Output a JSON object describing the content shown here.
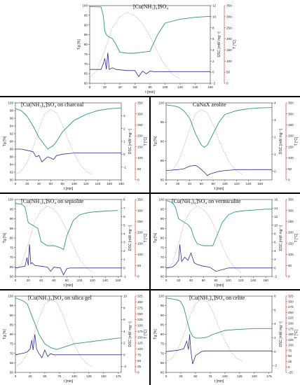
{
  "chart_data": [
    {
      "type": "line",
      "title": "[Cu(NH₃)₄]SO₄",
      "xlabel": "t [min]",
      "ylabel_left": "Tg [%]",
      "ylabel_dsc": "DSC [mW mg⁻¹]",
      "ylabel_temp": "T [°C]",
      "xlim": [
        0,
        160
      ],
      "xticks": [
        0,
        20,
        40,
        60,
        80,
        100,
        120,
        140,
        160
      ],
      "tg_lim": [
        60,
        100
      ],
      "tg_ticks": [
        60,
        65,
        70,
        75,
        80,
        85,
        90,
        95,
        100
      ],
      "dsc_lim": [
        -2,
        12
      ],
      "dsc_ticks": [
        -2,
        0,
        2,
        4,
        6,
        8,
        10,
        12
      ],
      "temp_lim": [
        0,
        350
      ],
      "temp_ticks": [
        0,
        50,
        100,
        150,
        200,
        250,
        300,
        350
      ],
      "tg": {
        "x": [
          0,
          15,
          18,
          20,
          22,
          25,
          30,
          35,
          40,
          50,
          60,
          70,
          80,
          90,
          100,
          120,
          140,
          160
        ],
        "y": [
          99.5,
          99.3,
          95,
          87,
          85,
          84,
          83,
          80,
          76,
          75.5,
          75.5,
          76,
          76.5,
          85,
          91,
          93,
          94,
          94.5
        ]
      },
      "dsc": {
        "x": [
          0,
          15,
          18,
          20,
          22,
          24,
          26,
          30,
          35,
          50,
          60,
          65,
          70,
          75,
          80,
          85,
          100,
          120,
          160
        ],
        "y": [
          0.5,
          0.5,
          1.5,
          2.5,
          0.5,
          3.5,
          0.5,
          0.8,
          0.5,
          0.3,
          0.3,
          -0.8,
          0.2,
          -0.3,
          0.2,
          0.1,
          0.1,
          0.1,
          0.1
        ]
      },
      "temp": {
        "x": [
          0,
          10,
          20,
          30,
          40,
          50,
          60,
          70,
          80,
          90,
          100,
          110,
          120
        ],
        "y": [
          25,
          60,
          150,
          250,
          300,
          320,
          305,
          270,
          210,
          140,
          80,
          40,
          20
        ]
      }
    },
    {
      "type": "line",
      "title": "[Cu(NH₃)₄]SO₄ on charcoal",
      "xlabel": "t [min]",
      "ylabel_left": "Tg [%]",
      "ylabel_dsc": "DSC [mW mg⁻¹]",
      "ylabel_temp": "T [°C]",
      "xlim": [
        0,
        180
      ],
      "xticks": [
        0,
        20,
        40,
        60,
        80,
        100,
        120,
        140,
        160,
        180
      ],
      "tg_lim": [
        80,
        100
      ],
      "tg_ticks": [
        80,
        82,
        84,
        86,
        88,
        90,
        92,
        94,
        96,
        98,
        100
      ],
      "dsc_lim": [
        -2,
        4
      ],
      "dsc_ticks": [
        -1,
        0,
        1,
        2,
        3
      ],
      "temp_lim": [
        0,
        350
      ],
      "temp_ticks": [
        0,
        50,
        100,
        150,
        200,
        250,
        300,
        350
      ],
      "tg": {
        "x": [
          0,
          10,
          20,
          30,
          40,
          50,
          55,
          60,
          65,
          70,
          80,
          100,
          120,
          140,
          160,
          180
        ],
        "y": [
          98.5,
          98,
          96.5,
          94,
          91,
          89,
          88,
          88.5,
          89,
          90,
          92.5,
          95.5,
          97,
          98,
          98.5,
          98.7
        ]
      },
      "dsc": {
        "x": [
          0,
          10,
          20,
          30,
          35,
          40,
          45,
          50,
          55,
          60,
          65,
          70,
          80,
          100,
          120,
          180
        ],
        "y": [
          0.4,
          0.4,
          0.3,
          0.2,
          -0.2,
          -0.1,
          -0.6,
          -0.4,
          -0.2,
          -0.3,
          -0.4,
          -0.1,
          0,
          0.1,
          0.1,
          0.1
        ]
      },
      "temp": {
        "x": [
          0,
          10,
          20,
          30,
          40,
          50,
          60,
          70,
          80,
          90,
          100,
          110,
          120,
          130
        ],
        "y": [
          25,
          40,
          80,
          150,
          230,
          300,
          320,
          305,
          250,
          180,
          120,
          70,
          40,
          25
        ]
      }
    },
    {
      "type": "line",
      "title": "CuNaX zeolite",
      "xlabel": "t [min]",
      "ylabel_left": "Tg [%]",
      "ylabel_dsc": "DSC [mW mg⁻¹]",
      "ylabel_temp": "T [°C]",
      "xlim": [
        0,
        180
      ],
      "xticks": [
        0,
        20,
        40,
        60,
        80,
        100,
        120,
        140,
        160
      ],
      "tg_lim": [
        80,
        100
      ],
      "tg_ticks": [
        80,
        85,
        90,
        95,
        100
      ],
      "dsc_lim": [
        -0.5,
        4
      ],
      "dsc_ticks": [
        0,
        1,
        2,
        3,
        4
      ],
      "temp_lim": [
        0,
        350
      ],
      "temp_ticks": [
        0,
        50,
        100,
        150,
        200,
        250,
        300,
        350
      ],
      "tg": {
        "x": [
          0,
          10,
          20,
          30,
          40,
          50,
          60,
          65,
          70,
          80,
          90,
          100,
          120,
          140,
          160,
          180
        ],
        "y": [
          99.5,
          99.3,
          99,
          98,
          96,
          92,
          89,
          88.5,
          89,
          92,
          95,
          97,
          98,
          98.5,
          98.7,
          98.8
        ]
      },
      "dsc": {
        "x": [
          0,
          20,
          30,
          40,
          50,
          55,
          60,
          65,
          70,
          75,
          80,
          90,
          100,
          120,
          180
        ],
        "y": [
          0.05,
          0.1,
          0.15,
          0.3,
          0.35,
          0.25,
          0.1,
          -0.05,
          -0.25,
          -0.15,
          -0.1,
          0,
          0.05,
          0.1,
          0.1
        ]
      },
      "temp": {
        "x": [
          0,
          10,
          20,
          30,
          40,
          50,
          60,
          70,
          80,
          90,
          100,
          110,
          120,
          130
        ],
        "y": [
          25,
          40,
          80,
          150,
          230,
          300,
          320,
          305,
          250,
          180,
          120,
          70,
          40,
          25
        ]
      }
    },
    {
      "type": "line",
      "title": "[Cu(NH₃)₄]SO₄ on sepiolite",
      "xlabel": "t [min]",
      "ylabel_left": "Tg [%]",
      "ylabel_dsc": "DSC [mW mg⁻¹]",
      "ylabel_temp": "T [°C]",
      "xlim": [
        0,
        165
      ],
      "xticks": [
        0,
        20,
        40,
        60,
        80,
        100,
        120,
        140,
        160
      ],
      "tg_lim": [
        60,
        100
      ],
      "tg_ticks": [
        60,
        65,
        70,
        75,
        80,
        85,
        90,
        95,
        100
      ],
      "dsc_lim": [
        -1,
        8
      ],
      "dsc_ticks": [
        -1,
        0,
        1,
        2,
        3,
        4,
        5,
        6,
        7,
        8
      ],
      "temp_lim": [
        0,
        350
      ],
      "temp_ticks": [
        0,
        50,
        100,
        150,
        200,
        250,
        300,
        350
      ],
      "tg": {
        "x": [
          0,
          10,
          15,
          20,
          25,
          30,
          35,
          40,
          50,
          60,
          70,
          75,
          80,
          90,
          100,
          110,
          120,
          140,
          160
        ],
        "y": [
          98,
          97.5,
          96,
          88,
          87,
          86,
          85,
          78,
          76,
          76,
          75,
          74,
          81,
          89,
          92,
          93,
          93.5,
          94,
          94.3
        ]
      },
      "dsc": {
        "x": [
          0,
          15,
          18,
          20,
          22,
          24,
          26,
          30,
          40,
          50,
          55,
          60,
          70,
          75,
          80,
          85,
          100,
          165
        ],
        "y": [
          0,
          0.2,
          1.2,
          0.3,
          2.8,
          0.5,
          0.6,
          0.3,
          0.2,
          0.1,
          -0.4,
          0.1,
          0,
          -0.8,
          -0.1,
          0,
          0,
          0
        ]
      },
      "temp": {
        "x": [
          0,
          10,
          20,
          30,
          40,
          50,
          60,
          70,
          80,
          90,
          100,
          110,
          120
        ],
        "y": [
          25,
          60,
          150,
          250,
          300,
          320,
          305,
          270,
          210,
          140,
          80,
          40,
          20
        ]
      }
    },
    {
      "type": "line",
      "title": "[Cu(NH₃)₄]SO₄ on vermiculite",
      "xlabel": "t [min]",
      "ylabel_left": "Tg [%]",
      "ylabel_dsc": "DSC [mW mg⁻¹]",
      "ylabel_temp": "T [°C]",
      "xlim": [
        0,
        170
      ],
      "xticks": [
        0,
        20,
        40,
        60,
        80,
        100,
        120,
        140,
        160
      ],
      "tg_lim": [
        60,
        100
      ],
      "tg_ticks": [
        60,
        65,
        70,
        75,
        80,
        85,
        90,
        95,
        100
      ],
      "dsc_lim": [
        -2,
        16
      ],
      "dsc_ticks": [
        -2,
        0,
        2,
        4,
        6,
        8,
        10,
        12,
        14,
        16
      ],
      "temp_lim": [
        0,
        350
      ],
      "temp_ticks": [
        0,
        50,
        100,
        150,
        200,
        250,
        300,
        350
      ],
      "tg": {
        "x": [
          0,
          10,
          15,
          20,
          30,
          35,
          40,
          45,
          50,
          60,
          70,
          75,
          80,
          90,
          100,
          110,
          120,
          140,
          160,
          170
        ],
        "y": [
          99.5,
          98.5,
          96,
          90,
          88,
          87,
          85,
          80,
          77,
          76,
          76,
          76,
          80,
          88,
          92,
          93.5,
          94,
          94.5,
          95,
          95
        ]
      },
      "dsc": {
        "x": [
          0,
          10,
          15,
          20,
          22,
          25,
          30,
          35,
          40,
          45,
          50,
          60,
          70,
          80,
          100,
          120,
          170
        ],
        "y": [
          0,
          0.2,
          0.8,
          1.8,
          5.5,
          1.5,
          2.5,
          1.8,
          3.5,
          1.2,
          0.8,
          0.4,
          0.2,
          -0.8,
          0,
          0,
          0
        ]
      },
      "temp": {
        "x": [
          0,
          10,
          20,
          30,
          40,
          50,
          60,
          70,
          80,
          90,
          100,
          110,
          120
        ],
        "y": [
          25,
          60,
          150,
          250,
          300,
          320,
          305,
          270,
          210,
          140,
          80,
          40,
          20
        ]
      }
    },
    {
      "type": "line",
      "title": "[Cu(NH₃)₄]SO₄ on silica gel",
      "xlabel": "t [min]",
      "ylabel_left": "Tg [%]",
      "ylabel_dsc": "DSC [mW mg⁻¹]",
      "ylabel_temp": "T [°C]",
      "xlim": [
        0,
        180
      ],
      "xticks": [
        0,
        25,
        50,
        75,
        100,
        125,
        150,
        175
      ],
      "tg_lim": [
        60,
        100
      ],
      "tg_ticks": [
        60,
        65,
        70,
        75,
        80,
        85,
        90,
        95,
        100
      ],
      "dsc_lim": [
        -3,
        10
      ],
      "dsc_ticks": [
        -2,
        0,
        2,
        4,
        6,
        8,
        10
      ],
      "temp_lim": [
        0,
        325
      ],
      "temp_ticks": [
        0,
        25,
        50,
        75,
        100,
        125,
        150,
        175,
        200,
        225,
        250,
        275,
        300,
        325
      ],
      "tg": {
        "x": [
          0,
          10,
          20,
          25,
          30,
          35,
          40,
          50,
          60,
          70,
          80,
          90,
          100,
          125,
          150,
          175,
          180
        ],
        "y": [
          99,
          98,
          96,
          92,
          88,
          84,
          80,
          75,
          73,
          72,
          73,
          74,
          75,
          76,
          77,
          78,
          78
        ]
      },
      "dsc": {
        "x": [
          0,
          15,
          20,
          25,
          28,
          30,
          33,
          36,
          40,
          45,
          50,
          55,
          60,
          65,
          80,
          100,
          180
        ],
        "y": [
          0,
          0.3,
          0.5,
          1,
          2.5,
          0.8,
          3.5,
          1,
          0.2,
          -0.5,
          0.8,
          -0.3,
          0.2,
          0,
          0,
          0,
          0
        ]
      },
      "temp": {
        "x": [
          0,
          10,
          20,
          30,
          40,
          50,
          60,
          70,
          80,
          90,
          100,
          110,
          120,
          130
        ],
        "y": [
          25,
          40,
          80,
          150,
          230,
          290,
          310,
          300,
          250,
          180,
          120,
          70,
          40,
          25
        ]
      }
    },
    {
      "type": "line",
      "title": "[Cu(NH₃)₄]SO₄ on celite",
      "xlabel": "t [min]",
      "ylabel_left": "Tg [%]",
      "ylabel_dsc": "DSC [mW mg⁻¹]",
      "ylabel_temp": "T [°C]",
      "xlim": [
        0,
        180
      ],
      "xticks": [
        0,
        25,
        50,
        75,
        100,
        125,
        150,
        175
      ],
      "tg_lim": [
        60,
        100
      ],
      "tg_ticks": [
        60,
        65,
        70,
        75,
        80,
        85,
        90,
        95,
        100
      ],
      "dsc_lim": [
        -3,
        8
      ],
      "dsc_ticks": [
        -2,
        0,
        2,
        4,
        6,
        8
      ],
      "temp_lim": [
        -25,
        325
      ],
      "temp_ticks": [
        -25,
        0,
        25,
        50,
        75,
        100,
        125,
        150,
        175,
        200,
        225,
        250,
        275,
        300,
        325
      ],
      "tg": {
        "x": [
          0,
          10,
          20,
          25,
          30,
          35,
          40,
          45,
          50,
          60,
          70,
          80,
          90,
          100,
          120,
          150,
          180
        ],
        "y": [
          99,
          98.5,
          98,
          97,
          94,
          88,
          82,
          79,
          78,
          78,
          78.5,
          80,
          81,
          82,
          82.5,
          83,
          83
        ]
      },
      "dsc": {
        "x": [
          0,
          20,
          30,
          35,
          38,
          40,
          42,
          45,
          50,
          55,
          60,
          65,
          80,
          100,
          180
        ],
        "y": [
          0,
          0.2,
          0.4,
          1.5,
          0.3,
          2.5,
          0.2,
          -1.8,
          -0.6,
          -0.3,
          0,
          0.1,
          0.1,
          0.1,
          0.1
        ]
      },
      "temp": {
        "x": [
          0,
          10,
          20,
          30,
          40,
          50,
          60,
          70,
          80,
          90,
          100,
          110,
          120,
          130
        ],
        "y": [
          25,
          40,
          80,
          150,
          230,
          290,
          310,
          300,
          250,
          180,
          120,
          70,
          40,
          25
        ]
      }
    }
  ],
  "colors": {
    "tg": "#2e9a6e",
    "dsc": "#2b2b9a",
    "temp": "#c8b0b0",
    "temp_axis": "#cc2222",
    "dsc_axis": "#2b2b9a",
    "frame": "#333333"
  }
}
